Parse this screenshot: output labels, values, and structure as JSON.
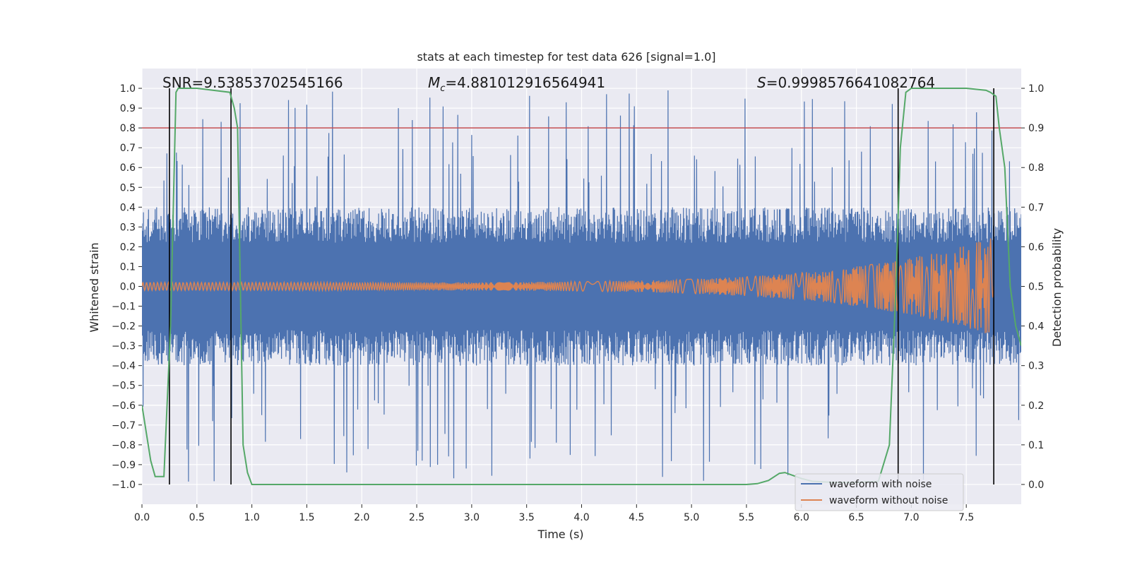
{
  "chart_data": {
    "type": "line",
    "title": "stats at each timestep for test data 626 [signal=1.0]",
    "xlabel": "Time (s)",
    "ylabel": "Whitened strain",
    "y2label": "Detection probability",
    "xlim": [
      0.0,
      8.0
    ],
    "ylim": [
      -1.1,
      1.1
    ],
    "y2lim": [
      -0.05,
      1.05
    ],
    "xticks": [
      "0.0",
      "0.5",
      "1.0",
      "1.5",
      "2.0",
      "2.5",
      "3.0",
      "3.5",
      "4.0",
      "4.5",
      "5.0",
      "5.5",
      "6.0",
      "6.5",
      "7.0",
      "7.5"
    ],
    "yticks": [
      "1.0",
      "0.9",
      "0.8",
      "0.7",
      "0.6",
      "0.5",
      "0.4",
      "0.3",
      "0.2",
      "0.1",
      "0.0",
      "−0.1",
      "−0.2",
      "−0.3",
      "−0.4",
      "−0.5",
      "−0.6",
      "−0.7",
      "−0.8",
      "−0.9",
      "−1.0"
    ],
    "y2ticks": [
      "1.0",
      "0.9",
      "0.8",
      "0.7",
      "0.6",
      "0.5",
      "0.4",
      "0.3",
      "0.2",
      "0.1",
      "0.0"
    ],
    "grid": true,
    "legend_position": "lower-right",
    "annotations": {
      "snr": "SNR=9.53853702545166",
      "mc_symbol": "M",
      "mc_sub": "c",
      "mc_value": "=4.881012916564941",
      "s_symbol": "S",
      "s_value": "=0.9998576641082764"
    },
    "threshold_line": {
      "y2": 0.9,
      "color": "#c44e52"
    },
    "vertical_lines_x": [
      0.25,
      0.81,
      6.88,
      7.75
    ],
    "series": [
      {
        "name": "waveform with noise",
        "color": "#4c72b0",
        "envelope_typical": 0.4,
        "peak_max": 0.99,
        "trough_min": -0.99
      },
      {
        "name": "waveform without noise",
        "color": "#dd8452",
        "amplitude_start": 0.02,
        "amplitude_end": 0.25,
        "end_x": 7.75
      },
      {
        "name": "",
        "color": "#55a868",
        "axis": "y2",
        "x": [
          0.0,
          0.08,
          0.12,
          0.2,
          0.26,
          0.31,
          0.33,
          0.5,
          0.8,
          0.84,
          0.87,
          0.92,
          0.96,
          1.0,
          1.1,
          2.0,
          3.0,
          4.0,
          5.0,
          5.5,
          5.6,
          5.7,
          5.8,
          5.85,
          5.9,
          6.0,
          6.1,
          6.3,
          6.5,
          6.7,
          6.8,
          6.86,
          6.9,
          6.95,
          7.0,
          7.2,
          7.5,
          7.68,
          7.72,
          7.77,
          7.8,
          7.85,
          7.9,
          7.95,
          8.0
        ],
        "values": [
          0.2,
          0.06,
          0.02,
          0.02,
          0.4,
          0.99,
          1.0,
          1.0,
          0.99,
          0.95,
          0.9,
          0.1,
          0.03,
          0.0,
          0.0,
          0.0,
          0.0,
          0.0,
          0.0,
          0.0,
          0.002,
          0.01,
          0.028,
          0.03,
          0.025,
          0.015,
          0.008,
          0.005,
          0.005,
          0.008,
          0.1,
          0.5,
          0.85,
          0.99,
          1.0,
          1.0,
          1.0,
          0.995,
          0.99,
          0.98,
          0.9,
          0.8,
          0.5,
          0.4,
          0.35
        ]
      }
    ]
  }
}
